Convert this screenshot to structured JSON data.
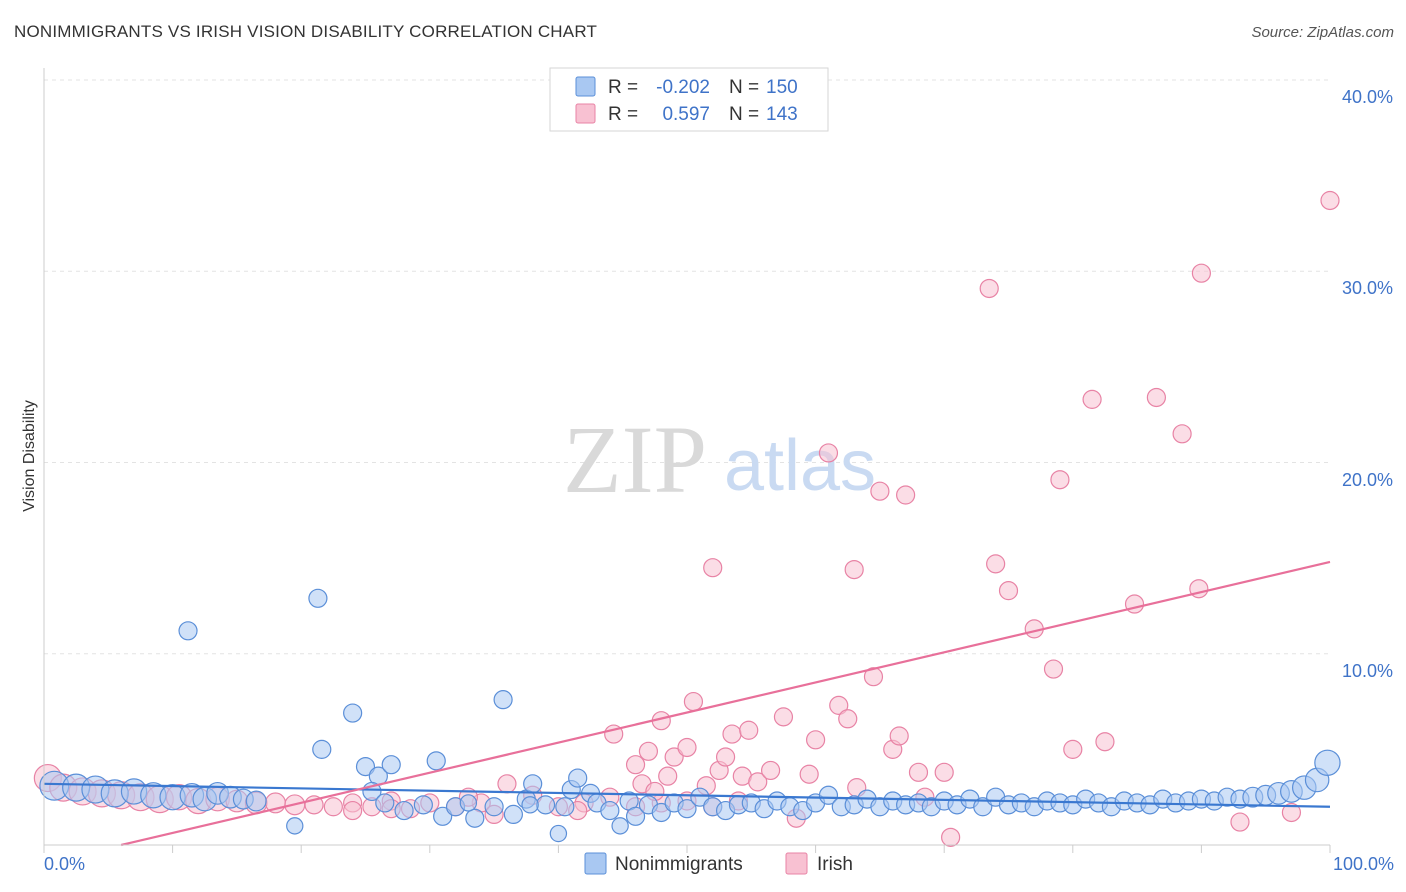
{
  "chart_data": {
    "type": "scatter",
    "title": "NONIMMIGRANTS VS IRISH VISION DISABILITY CORRELATION CHART",
    "source": "Source: ZipAtlas.com",
    "ylabel": "Vision Disability",
    "xlim": [
      0,
      100
    ],
    "ylim": [
      0,
      40
    ],
    "x_tick_labels": [
      "0.0%",
      "100.0%"
    ],
    "y_ticks": [
      10,
      20,
      30,
      40
    ],
    "y_tick_labels": [
      "10.0%",
      "20.0%",
      "30.0%",
      "40.0%"
    ],
    "grid": true,
    "legend_position": "bottom",
    "stats_box_position": "top-center",
    "watermark": {
      "zip": "ZIP",
      "atlas": "atlas"
    },
    "colors": {
      "nonimmigrants_fill": "#a9c8f2",
      "nonimmigrants_stroke": "#5b8fd8",
      "nonimmigrants_line": "#3a78d0",
      "irish_fill": "#f8c1d2",
      "irish_stroke": "#e883a5",
      "irish_line": "#e8709a",
      "value_text": "#3f73c8"
    },
    "stats": [
      {
        "r_label": "R =",
        "r_value": "-0.202",
        "n_label": "N =",
        "n_value": "150"
      },
      {
        "r_label": "R =",
        "r_value": "0.597",
        "n_label": "N =",
        "n_value": "143"
      }
    ],
    "series": [
      {
        "name": "Nonimmigrants",
        "trend": {
          "x": [
            0,
            100
          ],
          "y": [
            3.2,
            2.0
          ]
        },
        "points": [
          {
            "x": 0.8,
            "y": 3.1,
            "s": 1.6
          },
          {
            "x": 2.5,
            "y": 3.0,
            "s": 1.5
          },
          {
            "x": 4.0,
            "y": 2.9,
            "s": 1.5
          },
          {
            "x": 5.5,
            "y": 2.7,
            "s": 1.5
          },
          {
            "x": 7.0,
            "y": 2.8,
            "s": 1.4
          },
          {
            "x": 8.5,
            "y": 2.6,
            "s": 1.4
          },
          {
            "x": 10.0,
            "y": 2.5,
            "s": 1.4
          },
          {
            "x": 11.5,
            "y": 2.6,
            "s": 1.3
          },
          {
            "x": 12.5,
            "y": 2.4,
            "s": 1.3
          },
          {
            "x": 13.5,
            "y": 2.7,
            "s": 1.2
          },
          {
            "x": 14.5,
            "y": 2.5,
            "s": 1.2
          },
          {
            "x": 15.5,
            "y": 2.4,
            "s": 1.1
          },
          {
            "x": 16.5,
            "y": 2.3,
            "s": 1.1
          },
          {
            "x": 11.2,
            "y": 11.2,
            "s": 1.0
          },
          {
            "x": 21.3,
            "y": 12.9,
            "s": 1.0
          },
          {
            "x": 24.0,
            "y": 6.9,
            "s": 1.0
          },
          {
            "x": 21.6,
            "y": 5.0,
            "s": 1.0
          },
          {
            "x": 25.0,
            "y": 4.1,
            "s": 1.0
          },
          {
            "x": 26.0,
            "y": 3.6,
            "s": 1.0
          },
          {
            "x": 27.0,
            "y": 4.2,
            "s": 1.0
          },
          {
            "x": 30.5,
            "y": 4.4,
            "s": 1.0
          },
          {
            "x": 35.7,
            "y": 7.6,
            "s": 1.0
          },
          {
            "x": 25.5,
            "y": 2.8,
            "s": 1.0
          },
          {
            "x": 26.5,
            "y": 2.2,
            "s": 1.0
          },
          {
            "x": 28.0,
            "y": 1.8,
            "s": 1.0
          },
          {
            "x": 29.5,
            "y": 2.1,
            "s": 1.0
          },
          {
            "x": 31.0,
            "y": 1.5,
            "s": 1.0
          },
          {
            "x": 32.0,
            "y": 2.0,
            "s": 1.0
          },
          {
            "x": 33.5,
            "y": 1.4,
            "s": 1.0
          },
          {
            "x": 35.0,
            "y": 2.0,
            "s": 1.0
          },
          {
            "x": 36.5,
            "y": 1.6,
            "s": 1.0
          },
          {
            "x": 37.5,
            "y": 2.4,
            "s": 1.0
          },
          {
            "x": 38.0,
            "y": 3.2,
            "s": 1.0
          },
          {
            "x": 39.0,
            "y": 2.1,
            "s": 1.0
          },
          {
            "x": 40.5,
            "y": 2.0,
            "s": 1.0
          },
          {
            "x": 41.0,
            "y": 2.9,
            "s": 1.0
          },
          {
            "x": 41.5,
            "y": 3.5,
            "s": 1.0
          },
          {
            "x": 42.5,
            "y": 2.7,
            "s": 1.0
          },
          {
            "x": 43.0,
            "y": 2.2,
            "s": 1.0
          },
          {
            "x": 44.0,
            "y": 1.8,
            "s": 1.0
          },
          {
            "x": 45.5,
            "y": 2.3,
            "s": 1.0
          },
          {
            "x": 46.0,
            "y": 1.5,
            "s": 1.0
          },
          {
            "x": 47.0,
            "y": 2.1,
            "s": 1.0
          },
          {
            "x": 48.0,
            "y": 1.7,
            "s": 1.0
          },
          {
            "x": 49.0,
            "y": 2.2,
            "s": 1.0
          },
          {
            "x": 50.0,
            "y": 1.9,
            "s": 1.0
          },
          {
            "x": 51.0,
            "y": 2.5,
            "s": 1.0
          },
          {
            "x": 52.0,
            "y": 2.0,
            "s": 1.0
          },
          {
            "x": 53.0,
            "y": 1.8,
            "s": 1.0
          },
          {
            "x": 54.0,
            "y": 2.1,
            "s": 1.0
          },
          {
            "x": 55.0,
            "y": 2.2,
            "s": 1.0
          },
          {
            "x": 56.0,
            "y": 1.9,
            "s": 1.0
          },
          {
            "x": 57.0,
            "y": 2.3,
            "s": 1.0
          },
          {
            "x": 58.0,
            "y": 2.0,
            "s": 1.0
          },
          {
            "x": 59.0,
            "y": 1.8,
            "s": 1.0
          },
          {
            "x": 60.0,
            "y": 2.2,
            "s": 1.0
          },
          {
            "x": 61.0,
            "y": 2.6,
            "s": 1.0
          },
          {
            "x": 62.0,
            "y": 2.0,
            "s": 1.0
          },
          {
            "x": 63.0,
            "y": 2.1,
            "s": 1.0
          },
          {
            "x": 64.0,
            "y": 2.4,
            "s": 1.0
          },
          {
            "x": 65.0,
            "y": 2.0,
            "s": 1.0
          },
          {
            "x": 66.0,
            "y": 2.3,
            "s": 1.0
          },
          {
            "x": 67.0,
            "y": 2.1,
            "s": 1.0
          },
          {
            "x": 68.0,
            "y": 2.2,
            "s": 1.0
          },
          {
            "x": 69.0,
            "y": 2.0,
            "s": 1.0
          },
          {
            "x": 70.0,
            "y": 2.3,
            "s": 1.0
          },
          {
            "x": 71.0,
            "y": 2.1,
            "s": 1.0
          },
          {
            "x": 72.0,
            "y": 2.4,
            "s": 1.0
          },
          {
            "x": 73.0,
            "y": 2.0,
            "s": 1.0
          },
          {
            "x": 74.0,
            "y": 2.5,
            "s": 1.0
          },
          {
            "x": 75.0,
            "y": 2.1,
            "s": 1.0
          },
          {
            "x": 76.0,
            "y": 2.2,
            "s": 1.0
          },
          {
            "x": 77.0,
            "y": 2.0,
            "s": 1.0
          },
          {
            "x": 78.0,
            "y": 2.3,
            "s": 1.0
          },
          {
            "x": 79.0,
            "y": 2.2,
            "s": 1.0
          },
          {
            "x": 80.0,
            "y": 2.1,
            "s": 1.0
          },
          {
            "x": 81.0,
            "y": 2.4,
            "s": 1.0
          },
          {
            "x": 82.0,
            "y": 2.2,
            "s": 1.0
          },
          {
            "x": 83.0,
            "y": 2.0,
            "s": 1.0
          },
          {
            "x": 84.0,
            "y": 2.3,
            "s": 1.0
          },
          {
            "x": 85.0,
            "y": 2.2,
            "s": 1.0
          },
          {
            "x": 86.0,
            "y": 2.1,
            "s": 1.0
          },
          {
            "x": 87.0,
            "y": 2.4,
            "s": 1.0
          },
          {
            "x": 88.0,
            "y": 2.2,
            "s": 1.0
          },
          {
            "x": 89.0,
            "y": 2.3,
            "s": 1.0
          },
          {
            "x": 90.0,
            "y": 2.4,
            "s": 1.0
          },
          {
            "x": 91.0,
            "y": 2.3,
            "s": 1.0
          },
          {
            "x": 92.0,
            "y": 2.5,
            "s": 1.0
          },
          {
            "x": 93.0,
            "y": 2.4,
            "s": 1.0
          },
          {
            "x": 94.0,
            "y": 2.5,
            "s": 1.1
          },
          {
            "x": 95.0,
            "y": 2.6,
            "s": 1.1
          },
          {
            "x": 96.0,
            "y": 2.7,
            "s": 1.2
          },
          {
            "x": 97.0,
            "y": 2.8,
            "s": 1.2
          },
          {
            "x": 98.0,
            "y": 3.0,
            "s": 1.3
          },
          {
            "x": 99.0,
            "y": 3.4,
            "s": 1.3
          },
          {
            "x": 99.8,
            "y": 4.3,
            "s": 1.4
          },
          {
            "x": 19.5,
            "y": 1.0,
            "s": 0.9
          },
          {
            "x": 40.0,
            "y": 0.6,
            "s": 0.9
          },
          {
            "x": 44.8,
            "y": 1.0,
            "s": 0.9
          },
          {
            "x": 37.8,
            "y": 2.1,
            "s": 0.9
          },
          {
            "x": 33.0,
            "y": 2.2,
            "s": 0.9
          }
        ]
      },
      {
        "name": "Irish",
        "trend": {
          "x": [
            6,
            100
          ],
          "y": [
            0,
            14.8
          ]
        },
        "points": [
          {
            "x": 0.3,
            "y": 3.5,
            "s": 1.5
          },
          {
            "x": 1.5,
            "y": 3.0,
            "s": 1.5
          },
          {
            "x": 3.0,
            "y": 2.8,
            "s": 1.5
          },
          {
            "x": 4.5,
            "y": 2.7,
            "s": 1.5
          },
          {
            "x": 6.0,
            "y": 2.6,
            "s": 1.5
          },
          {
            "x": 7.5,
            "y": 2.5,
            "s": 1.5
          },
          {
            "x": 9.0,
            "y": 2.4,
            "s": 1.5
          },
          {
            "x": 10.5,
            "y": 2.5,
            "s": 1.4
          },
          {
            "x": 12.0,
            "y": 2.3,
            "s": 1.4
          },
          {
            "x": 13.5,
            "y": 2.4,
            "s": 1.3
          },
          {
            "x": 15.0,
            "y": 2.3,
            "s": 1.2
          },
          {
            "x": 16.5,
            "y": 2.2,
            "s": 1.2
          },
          {
            "x": 18.0,
            "y": 2.2,
            "s": 1.1
          },
          {
            "x": 19.5,
            "y": 2.1,
            "s": 1.1
          },
          {
            "x": 21.0,
            "y": 2.1,
            "s": 1.0
          },
          {
            "x": 22.5,
            "y": 2.0,
            "s": 1.0
          },
          {
            "x": 24.0,
            "y": 2.2,
            "s": 1.0
          },
          {
            "x": 25.5,
            "y": 2.0,
            "s": 1.0
          },
          {
            "x": 27.0,
            "y": 2.3,
            "s": 1.0
          },
          {
            "x": 28.5,
            "y": 1.9,
            "s": 1.0
          },
          {
            "x": 30.0,
            "y": 2.2,
            "s": 1.0
          },
          {
            "x": 32.0,
            "y": 2.0,
            "s": 1.0
          },
          {
            "x": 34.0,
            "y": 2.2,
            "s": 1.0
          },
          {
            "x": 36.0,
            "y": 3.2,
            "s": 1.0
          },
          {
            "x": 38.0,
            "y": 2.6,
            "s": 1.0
          },
          {
            "x": 40.0,
            "y": 2.0,
            "s": 1.0
          },
          {
            "x": 42.0,
            "y": 2.2,
            "s": 1.0
          },
          {
            "x": 44.0,
            "y": 2.5,
            "s": 1.0
          },
          {
            "x": 46.0,
            "y": 2.0,
            "s": 1.0
          },
          {
            "x": 48.0,
            "y": 2.2,
            "s": 1.0
          },
          {
            "x": 50.0,
            "y": 2.3,
            "s": 1.0
          },
          {
            "x": 52.0,
            "y": 2.0,
            "s": 1.0
          },
          {
            "x": 54.0,
            "y": 2.3,
            "s": 1.0
          },
          {
            "x": 27.0,
            "y": 1.9,
            "s": 1.0
          },
          {
            "x": 35.0,
            "y": 1.6,
            "s": 1.0
          },
          {
            "x": 41.5,
            "y": 1.8,
            "s": 1.0
          },
          {
            "x": 24.0,
            "y": 1.8,
            "s": 1.0
          },
          {
            "x": 33.0,
            "y": 2.5,
            "s": 1.0
          },
          {
            "x": 46.0,
            "y": 4.2,
            "s": 1.0
          },
          {
            "x": 47.0,
            "y": 4.9,
            "s": 1.0
          },
          {
            "x": 44.3,
            "y": 5.8,
            "s": 1.0
          },
          {
            "x": 46.5,
            "y": 3.2,
            "s": 1.0
          },
          {
            "x": 47.5,
            "y": 2.8,
            "s": 1.0
          },
          {
            "x": 48.5,
            "y": 3.6,
            "s": 1.0
          },
          {
            "x": 48.0,
            "y": 6.5,
            "s": 1.0
          },
          {
            "x": 49.0,
            "y": 4.6,
            "s": 1.0
          },
          {
            "x": 50.0,
            "y": 5.1,
            "s": 1.0
          },
          {
            "x": 50.5,
            "y": 7.5,
            "s": 1.0
          },
          {
            "x": 51.5,
            "y": 3.1,
            "s": 1.0
          },
          {
            "x": 52.0,
            "y": 14.5,
            "s": 1.0
          },
          {
            "x": 52.5,
            "y": 3.9,
            "s": 1.0
          },
          {
            "x": 53.0,
            "y": 4.6,
            "s": 1.0
          },
          {
            "x": 53.5,
            "y": 5.8,
            "s": 1.0
          },
          {
            "x": 54.3,
            "y": 3.6,
            "s": 1.0
          },
          {
            "x": 54.8,
            "y": 6.0,
            "s": 1.0
          },
          {
            "x": 55.5,
            "y": 3.3,
            "s": 1.0
          },
          {
            "x": 56.5,
            "y": 3.9,
            "s": 1.0
          },
          {
            "x": 57.5,
            "y": 6.7,
            "s": 1.0
          },
          {
            "x": 58.5,
            "y": 1.4,
            "s": 1.0
          },
          {
            "x": 59.5,
            "y": 3.7,
            "s": 1.0
          },
          {
            "x": 60.0,
            "y": 5.5,
            "s": 1.0
          },
          {
            "x": 61.0,
            "y": 20.5,
            "s": 1.0
          },
          {
            "x": 61.8,
            "y": 7.3,
            "s": 1.0
          },
          {
            "x": 62.5,
            "y": 6.6,
            "s": 1.0
          },
          {
            "x": 63.0,
            "y": 14.4,
            "s": 1.0
          },
          {
            "x": 63.2,
            "y": 3.0,
            "s": 1.0
          },
          {
            "x": 64.5,
            "y": 8.8,
            "s": 1.0
          },
          {
            "x": 65.0,
            "y": 18.5,
            "s": 1.0
          },
          {
            "x": 66.0,
            "y": 5.0,
            "s": 1.0
          },
          {
            "x": 66.5,
            "y": 5.7,
            "s": 1.0
          },
          {
            "x": 67.0,
            "y": 18.3,
            "s": 1.0
          },
          {
            "x": 68.0,
            "y": 3.8,
            "s": 1.0
          },
          {
            "x": 68.5,
            "y": 2.5,
            "s": 1.0
          },
          {
            "x": 70.0,
            "y": 3.8,
            "s": 1.0
          },
          {
            "x": 70.5,
            "y": 0.4,
            "s": 1.0
          },
          {
            "x": 73.5,
            "y": 29.1,
            "s": 1.0
          },
          {
            "x": 74.0,
            "y": 14.7,
            "s": 1.0
          },
          {
            "x": 75.0,
            "y": 13.3,
            "s": 1.0
          },
          {
            "x": 77.0,
            "y": 11.3,
            "s": 1.0
          },
          {
            "x": 79.0,
            "y": 19.1,
            "s": 1.0
          },
          {
            "x": 78.5,
            "y": 9.2,
            "s": 1.0
          },
          {
            "x": 80.0,
            "y": 5.0,
            "s": 1.0
          },
          {
            "x": 81.5,
            "y": 23.3,
            "s": 1.0
          },
          {
            "x": 82.5,
            "y": 5.4,
            "s": 1.0
          },
          {
            "x": 84.8,
            "y": 12.6,
            "s": 1.0
          },
          {
            "x": 86.5,
            "y": 23.4,
            "s": 1.0
          },
          {
            "x": 88.5,
            "y": 21.5,
            "s": 1.0
          },
          {
            "x": 89.8,
            "y": 13.4,
            "s": 1.0
          },
          {
            "x": 90.0,
            "y": 29.9,
            "s": 1.0
          },
          {
            "x": 93.0,
            "y": 1.2,
            "s": 1.0
          },
          {
            "x": 97.0,
            "y": 1.7,
            "s": 1.0
          },
          {
            "x": 100.0,
            "y": 33.7,
            "s": 1.0
          }
        ]
      }
    ]
  }
}
